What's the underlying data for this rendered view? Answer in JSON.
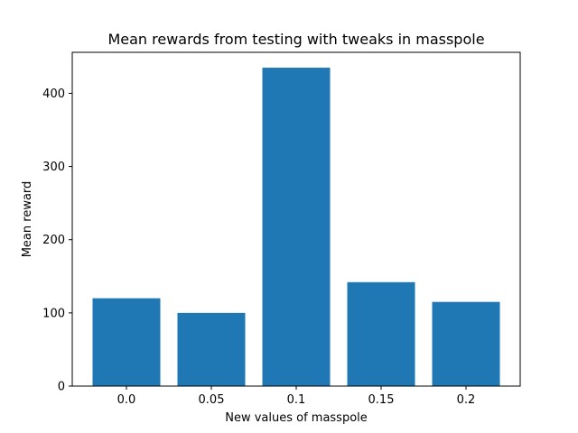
{
  "chart_data": {
    "type": "bar",
    "title": "Mean rewards from testing with tweaks in masspole",
    "xlabel": "New values of masspole",
    "ylabel": "Mean reward",
    "categories": [
      "0.0",
      "0.05",
      "0.1",
      "0.15",
      "0.2"
    ],
    "values": [
      120,
      100,
      435,
      142,
      115
    ],
    "yticks": [
      0,
      100,
      200,
      300,
      400
    ],
    "ylim": [
      0,
      456
    ],
    "grid": false,
    "legend": "none",
    "bar_color": "#1f77b4"
  }
}
